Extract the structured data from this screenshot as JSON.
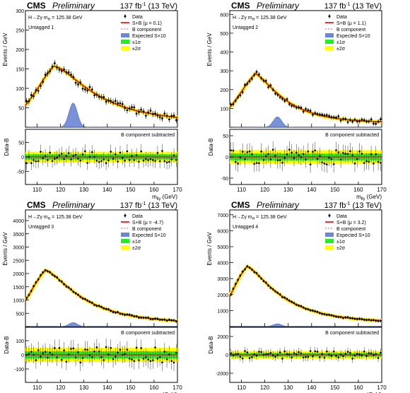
{
  "legend": {
    "data": "Data",
    "bcomp": "B component",
    "expected": "Expected S×10",
    "one_sigma": "±1σ",
    "two_sigma": "±2σ"
  },
  "header": {
    "cms": "CMS",
    "preliminary": "Preliminary",
    "lumi": "137 fb",
    "lumi_sup": "-1",
    "energy": " (13 TeV)"
  },
  "annotation": {
    "channel": "H→Zγ  m",
    "channel_sub": "H",
    "channel_tail": " = 125.38 GeV",
    "ratio_label": "B component subtracted"
  },
  "axis": {
    "xlabel_main": "m",
    "xlabel_sub": "llγ",
    "xlabel_unit": " (GeV)",
    "ylabel_top": "Events / GeV",
    "ylabel_bottom": "Data-B"
  },
  "colors": {
    "fit": "#e8201a",
    "bcomp": "#e8201a",
    "signal": "#6a86d4",
    "band1": "#22ee22",
    "band2": "#ffff00",
    "data": "#000000"
  },
  "chart_data": [
    {
      "type": "line",
      "title": "Untagged 1",
      "fit_label": "S+B (μ = 0.1)",
      "xlim": [
        105,
        170
      ],
      "ylim": [
        0,
        300
      ],
      "yticks": [
        0,
        50,
        100,
        150,
        200,
        250,
        300
      ],
      "xticks": [
        110,
        120,
        130,
        140,
        150,
        160,
        170
      ],
      "ratio_ylim": [
        -95,
        95
      ],
      "ratio_yticks": [
        -50,
        0,
        50
      ],
      "bkg_params": {
        "A": 200,
        "mpeak": 117,
        "rise": 5,
        "fall": 19,
        "floor": 14
      },
      "signal_peak": 62,
      "data_seed": 11,
      "scatter": 9,
      "ratio_scatter": 22,
      "band1": 9,
      "band2": 18
    },
    {
      "type": "line",
      "title": "Untagged 2",
      "fit_label": "S+B (μ = 1.1)",
      "xlim": [
        105,
        170
      ],
      "ylim": [
        0,
        620
      ],
      "yticks": [
        0,
        100,
        200,
        300,
        400,
        500,
        600
      ],
      "xticks": [
        110,
        120,
        130,
        140,
        150,
        160,
        170
      ],
      "ratio_ylim": [
        -65,
        65
      ],
      "ratio_yticks": [
        -50,
        0,
        50
      ],
      "bkg_params": {
        "A": 355,
        "mpeak": 116,
        "rise": 4.5,
        "fall": 13,
        "floor": 24
      },
      "signal_peak": 55,
      "data_seed": 23,
      "scatter": 13,
      "ratio_scatter": 18,
      "band1": 8,
      "band2": 16
    },
    {
      "type": "line",
      "title": "Untagged 3",
      "fit_label": "S+B (μ = -4.7)",
      "xlim": [
        105,
        170
      ],
      "ylim": [
        0,
        4400
      ],
      "yticks": [
        0,
        500,
        1000,
        1500,
        2000,
        2500,
        3000,
        3500,
        4000
      ],
      "xticks": [
        110,
        120,
        130,
        140,
        150,
        160,
        170
      ],
      "ratio_ylim": [
        -195,
        195
      ],
      "ratio_yticks": [
        -100,
        0,
        100
      ],
      "bkg_params": {
        "A": 2570,
        "mpeak": 113.5,
        "rise": 4,
        "fall": 17,
        "floor": 130
      },
      "signal_peak": 150,
      "data_seed": 37,
      "scatter": 30,
      "ratio_scatter": 55,
      "band1": 25,
      "band2": 50
    },
    {
      "type": "line",
      "title": "Untagged 4",
      "fit_label": "S+B (μ = 3.2)",
      "xlim": [
        105,
        170
      ],
      "ylim": [
        0,
        7300
      ],
      "yticks": [
        0,
        1000,
        2000,
        3000,
        4000,
        5000,
        6000,
        7000
      ],
      "xticks": [
        110,
        120,
        130,
        140,
        150,
        160,
        170
      ],
      "ratio_ylim": [
        -3000,
        3000
      ],
      "ratio_yticks": [
        -2000,
        0,
        2000
      ],
      "bkg_params": {
        "A": 4400,
        "mpeak": 112.5,
        "rise": 3.5,
        "fall": 16,
        "floor": 260
      },
      "signal_peak": 170,
      "data_seed": 53,
      "scatter": 45,
      "ratio_scatter": 420,
      "band1": 200,
      "band2": 420
    }
  ]
}
